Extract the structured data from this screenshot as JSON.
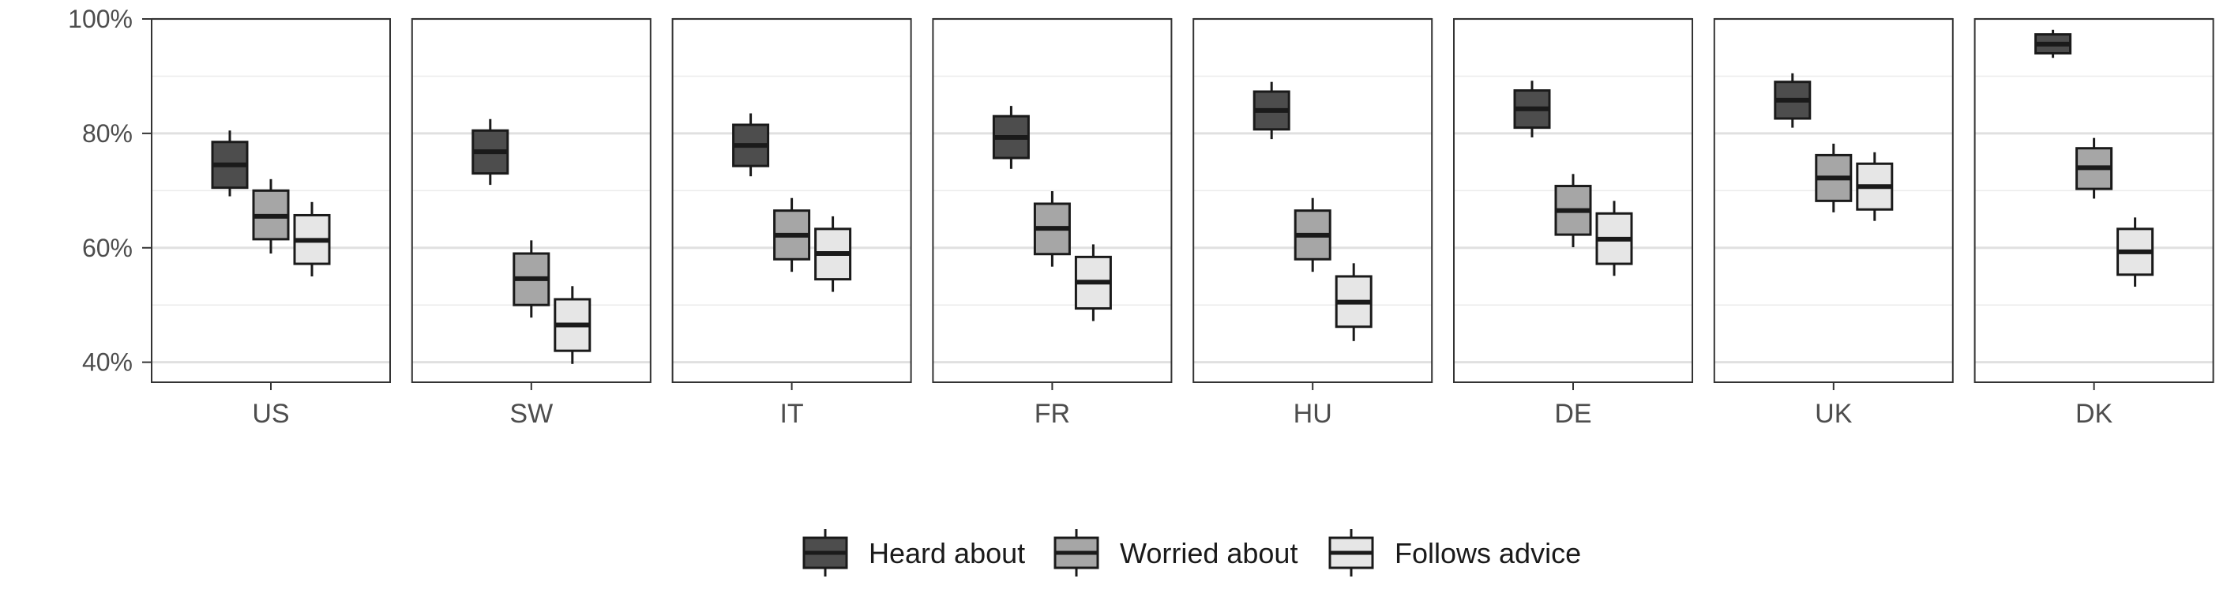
{
  "chart_data": {
    "type": "boxplot",
    "facet_by": "country",
    "y_axis": {
      "ylim": [
        0.365,
        1.0
      ],
      "ticks": [
        0.4,
        0.6,
        0.8,
        1.0
      ],
      "tick_labels": [
        "40%",
        "60%",
        "80%",
        "100%"
      ],
      "minor_ticks": [
        0.5,
        0.7,
        0.9
      ],
      "grid": true
    },
    "legend": {
      "position": "bottom"
    },
    "series": [
      {
        "name": "Heard about",
        "fill": "#4d4d4d"
      },
      {
        "name": "Worried about",
        "fill": "#a6a6a6"
      },
      {
        "name": "Follows advice",
        "fill": "#e6e6e6"
      }
    ],
    "facets": [
      {
        "label": "US",
        "boxes": [
          {
            "whisker_low": 0.69,
            "q1": 0.705,
            "median": 0.745,
            "q3": 0.785,
            "whisker_high": 0.805
          },
          {
            "whisker_low": 0.59,
            "q1": 0.615,
            "median": 0.655,
            "q3": 0.7,
            "whisker_high": 0.72
          },
          {
            "whisker_low": 0.55,
            "q1": 0.572,
            "median": 0.613,
            "q3": 0.657,
            "whisker_high": 0.68
          }
        ]
      },
      {
        "label": "SW",
        "boxes": [
          {
            "whisker_low": 0.71,
            "q1": 0.73,
            "median": 0.768,
            "q3": 0.805,
            "whisker_high": 0.825
          },
          {
            "whisker_low": 0.478,
            "q1": 0.5,
            "median": 0.546,
            "q3": 0.59,
            "whisker_high": 0.613
          },
          {
            "whisker_low": 0.397,
            "q1": 0.42,
            "median": 0.465,
            "q3": 0.51,
            "whisker_high": 0.533
          }
        ]
      },
      {
        "label": "IT",
        "boxes": [
          {
            "whisker_low": 0.725,
            "q1": 0.743,
            "median": 0.779,
            "q3": 0.815,
            "whisker_high": 0.835
          },
          {
            "whisker_low": 0.558,
            "q1": 0.58,
            "median": 0.622,
            "q3": 0.665,
            "whisker_high": 0.687
          },
          {
            "whisker_low": 0.523,
            "q1": 0.545,
            "median": 0.59,
            "q3": 0.633,
            "whisker_high": 0.655
          }
        ]
      },
      {
        "label": "FR",
        "boxes": [
          {
            "whisker_low": 0.738,
            "q1": 0.757,
            "median": 0.793,
            "q3": 0.83,
            "whisker_high": 0.848
          },
          {
            "whisker_low": 0.567,
            "q1": 0.589,
            "median": 0.634,
            "q3": 0.677,
            "whisker_high": 0.699
          },
          {
            "whisker_low": 0.472,
            "q1": 0.494,
            "median": 0.54,
            "q3": 0.584,
            "whisker_high": 0.606
          }
        ]
      },
      {
        "label": "HU",
        "boxes": [
          {
            "whisker_low": 0.79,
            "q1": 0.807,
            "median": 0.84,
            "q3": 0.873,
            "whisker_high": 0.89
          },
          {
            "whisker_low": 0.558,
            "q1": 0.58,
            "median": 0.622,
            "q3": 0.665,
            "whisker_high": 0.687
          },
          {
            "whisker_low": 0.437,
            "q1": 0.462,
            "median": 0.505,
            "q3": 0.55,
            "whisker_high": 0.573
          }
        ]
      },
      {
        "label": "DE",
        "boxes": [
          {
            "whisker_low": 0.793,
            "q1": 0.81,
            "median": 0.843,
            "q3": 0.875,
            "whisker_high": 0.892
          },
          {
            "whisker_low": 0.601,
            "q1": 0.623,
            "median": 0.665,
            "q3": 0.708,
            "whisker_high": 0.729
          },
          {
            "whisker_low": 0.551,
            "q1": 0.572,
            "median": 0.615,
            "q3": 0.66,
            "whisker_high": 0.682
          }
        ]
      },
      {
        "label": "UK",
        "boxes": [
          {
            "whisker_low": 0.81,
            "q1": 0.826,
            "median": 0.858,
            "q3": 0.89,
            "whisker_high": 0.905
          },
          {
            "whisker_low": 0.662,
            "q1": 0.682,
            "median": 0.722,
            "q3": 0.762,
            "whisker_high": 0.782
          },
          {
            "whisker_low": 0.647,
            "q1": 0.667,
            "median": 0.707,
            "q3": 0.747,
            "whisker_high": 0.767
          }
        ]
      },
      {
        "label": "DK",
        "boxes": [
          {
            "whisker_low": 0.932,
            "q1": 0.94,
            "median": 0.956,
            "q3": 0.973,
            "whisker_high": 0.981
          },
          {
            "whisker_low": 0.686,
            "q1": 0.703,
            "median": 0.74,
            "q3": 0.774,
            "whisker_high": 0.792
          },
          {
            "whisker_low": 0.532,
            "q1": 0.553,
            "median": 0.593,
            "q3": 0.633,
            "whisker_high": 0.653
          }
        ]
      }
    ]
  }
}
